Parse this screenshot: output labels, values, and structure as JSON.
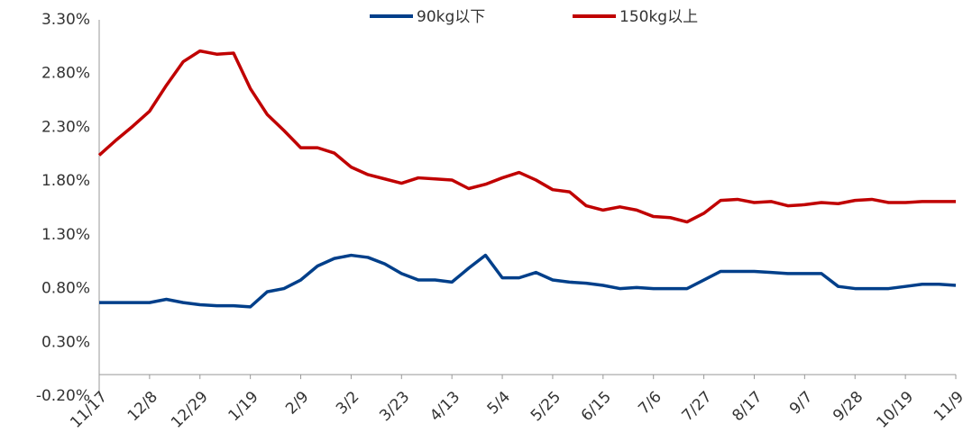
{
  "chart_data": {
    "type": "line",
    "categories": [
      "11/17",
      null,
      null,
      "12/8",
      null,
      null,
      "12/29",
      null,
      null,
      "1/19",
      null,
      null,
      "2/9",
      null,
      null,
      "3/2",
      null,
      null,
      "3/23",
      null,
      null,
      "4/13",
      null,
      null,
      "5/4",
      null,
      null,
      "5/25",
      null,
      null,
      "6/15",
      null,
      null,
      "7/6",
      null,
      null,
      "7/27",
      null,
      null,
      "8/17",
      null,
      null,
      "9/7",
      null,
      null,
      "9/28",
      null,
      null,
      "10/19",
      null,
      null,
      "11/9"
    ],
    "series": [
      {
        "name": "90kg以下",
        "color": "#003f8a",
        "values": [
          0.67,
          0.67,
          0.67,
          0.67,
          0.7,
          0.67,
          0.65,
          0.64,
          0.64,
          0.63,
          0.77,
          0.8,
          0.88,
          1.01,
          1.08,
          1.11,
          1.09,
          1.03,
          0.94,
          0.88,
          0.88,
          0.86,
          0.99,
          1.11,
          0.9,
          0.9,
          0.95,
          0.88,
          0.86,
          0.85,
          0.83,
          0.8,
          0.81,
          0.8,
          0.8,
          0.8,
          0.88,
          0.96,
          0.96,
          0.96,
          0.95,
          0.94,
          0.94,
          0.94,
          0.82,
          0.8,
          0.8,
          0.8,
          0.82,
          0.84,
          0.84,
          0.83
        ]
      },
      {
        "name": "150kg以上",
        "color": "#c00000",
        "values": [
          2.04,
          2.18,
          2.31,
          2.45,
          2.69,
          2.91,
          3.01,
          2.98,
          2.99,
          2.66,
          2.42,
          2.27,
          2.11,
          2.11,
          2.06,
          1.93,
          1.86,
          1.82,
          1.78,
          1.83,
          1.82,
          1.81,
          1.73,
          1.77,
          1.83,
          1.88,
          1.81,
          1.72,
          1.7,
          1.57,
          1.53,
          1.56,
          1.53,
          1.47,
          1.46,
          1.42,
          1.5,
          1.62,
          1.63,
          1.6,
          1.61,
          1.57,
          1.58,
          1.6,
          1.59,
          1.62,
          1.63,
          1.6,
          1.6,
          1.61,
          1.61,
          1.61
        ]
      }
    ],
    "ylim": [
      -0.2,
      3.3
    ],
    "yticks": [
      {
        "value": -0.2,
        "label": "-0.20%"
      },
      {
        "value": 0.3,
        "label": "0.30%"
      },
      {
        "value": 0.8,
        "label": "0.80%"
      },
      {
        "value": 1.3,
        "label": "1.30%"
      },
      {
        "value": 1.8,
        "label": "1.80%"
      },
      {
        "value": 2.3,
        "label": "2.30%"
      },
      {
        "value": 2.8,
        "label": "2.80%"
      },
      {
        "value": 3.3,
        "label": "3.30%"
      }
    ],
    "legend": "top"
  }
}
